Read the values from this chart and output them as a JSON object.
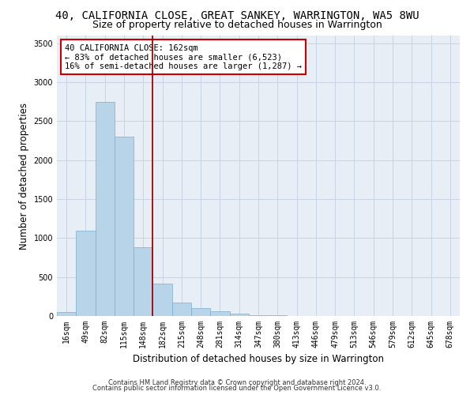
{
  "title": "40, CALIFORNIA CLOSE, GREAT SANKEY, WARRINGTON, WA5 8WU",
  "subtitle": "Size of property relative to detached houses in Warrington",
  "xlabel": "Distribution of detached houses by size in Warrington",
  "ylabel": "Number of detached properties",
  "footer_line1": "Contains HM Land Registry data © Crown copyright and database right 2024.",
  "footer_line2": "Contains public sector information licensed under the Open Government Licence v3.0.",
  "annotation_title": "40 CALIFORNIA CLOSE: 162sqm",
  "annotation_line1": "← 83% of detached houses are smaller (6,523)",
  "annotation_line2": "16% of semi-detached houses are larger (1,287) →",
  "bar_labels": [
    "16sqm",
    "49sqm",
    "82sqm",
    "115sqm",
    "148sqm",
    "182sqm",
    "215sqm",
    "248sqm",
    "281sqm",
    "314sqm",
    "347sqm",
    "380sqm",
    "413sqm",
    "446sqm",
    "479sqm",
    "513sqm",
    "546sqm",
    "579sqm",
    "612sqm",
    "645sqm",
    "678sqm"
  ],
  "bar_values": [
    50,
    1100,
    2750,
    2300,
    880,
    420,
    175,
    100,
    60,
    35,
    15,
    8,
    4,
    3,
    2,
    1,
    1,
    0,
    0,
    0,
    0
  ],
  "bar_color": "#b8d4e8",
  "bar_edge_color": "#7aaed0",
  "vline_color": "#aa0000",
  "vline_x": 4.5,
  "ylim": [
    0,
    3600
  ],
  "yticks": [
    0,
    500,
    1000,
    1500,
    2000,
    2500,
    3000,
    3500
  ],
  "grid_color": "#c8d4e4",
  "background_color": "#e8eef6",
  "title_fontsize": 10,
  "subtitle_fontsize": 9,
  "axis_label_fontsize": 8.5,
  "tick_fontsize": 7,
  "footer_fontsize": 6
}
